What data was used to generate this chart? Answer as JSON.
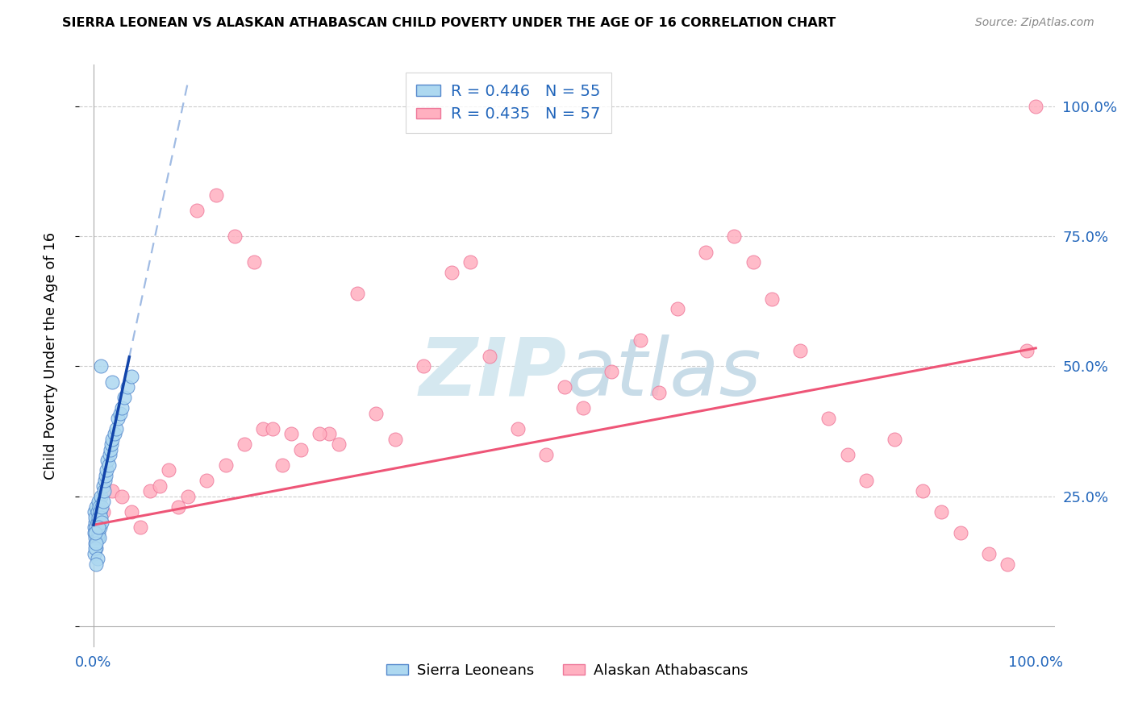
{
  "title": "SIERRA LEONEAN VS ALASKAN ATHABASCAN CHILD POVERTY UNDER THE AGE OF 16 CORRELATION CHART",
  "source": "Source: ZipAtlas.com",
  "ylabel": "Child Poverty Under the Age of 16",
  "legend_label1": "Sierra Leoneans",
  "legend_label2": "Alaskan Athabascans",
  "legend_r1": "R = 0.446",
  "legend_n1": "N = 55",
  "legend_r2": "R = 0.435",
  "legend_n2": "N = 57",
  "blue_color": "#ADD8F0",
  "blue_edge": "#5588CC",
  "pink_color": "#FFB0C0",
  "pink_edge": "#EE7799",
  "blue_line_color": "#1144AA",
  "pink_line_color": "#EE5577",
  "watermark_color": "#D5E8F0",
  "background_color": "#FFFFFF",
  "grid_color": "#CCCCCC",
  "tick_color": "#2266BB",
  "title_color": "#000000",
  "source_color": "#888888",
  "xlim": [
    -0.015,
    1.02
  ],
  "ylim": [
    -0.04,
    1.08
  ],
  "blue_scatter_x": [
    0.001,
    0.001,
    0.001,
    0.002,
    0.002,
    0.002,
    0.002,
    0.003,
    0.003,
    0.003,
    0.003,
    0.004,
    0.004,
    0.004,
    0.005,
    0.005,
    0.005,
    0.006,
    0.006,
    0.006,
    0.007,
    0.007,
    0.008,
    0.008,
    0.009,
    0.009,
    0.01,
    0.01,
    0.011,
    0.012,
    0.013,
    0.014,
    0.015,
    0.016,
    0.017,
    0.018,
    0.019,
    0.02,
    0.022,
    0.024,
    0.026,
    0.028,
    0.03,
    0.033,
    0.036,
    0.04,
    0.001,
    0.002,
    0.003,
    0.004,
    0.002,
    0.003,
    0.005,
    0.02,
    0.008
  ],
  "blue_scatter_y": [
    0.19,
    0.22,
    0.18,
    0.2,
    0.16,
    0.21,
    0.17,
    0.19,
    0.23,
    0.18,
    0.15,
    0.2,
    0.22,
    0.17,
    0.21,
    0.18,
    0.24,
    0.2,
    0.23,
    0.17,
    0.22,
    0.19,
    0.25,
    0.21,
    0.23,
    0.2,
    0.27,
    0.24,
    0.26,
    0.28,
    0.29,
    0.3,
    0.32,
    0.31,
    0.33,
    0.34,
    0.35,
    0.36,
    0.37,
    0.38,
    0.4,
    0.41,
    0.42,
    0.44,
    0.46,
    0.48,
    0.14,
    0.15,
    0.16,
    0.13,
    0.18,
    0.12,
    0.19,
    0.47,
    0.5
  ],
  "pink_scatter_x": [
    0.005,
    0.01,
    0.02,
    0.03,
    0.04,
    0.05,
    0.06,
    0.08,
    0.1,
    0.12,
    0.14,
    0.16,
    0.18,
    0.2,
    0.22,
    0.25,
    0.28,
    0.3,
    0.32,
    0.35,
    0.38,
    0.4,
    0.42,
    0.45,
    0.48,
    0.5,
    0.52,
    0.55,
    0.58,
    0.6,
    0.62,
    0.65,
    0.68,
    0.7,
    0.72,
    0.75,
    0.78,
    0.8,
    0.82,
    0.85,
    0.88,
    0.9,
    0.92,
    0.95,
    0.97,
    0.99,
    1.0,
    0.07,
    0.09,
    0.11,
    0.13,
    0.15,
    0.17,
    0.19,
    0.21,
    0.24,
    0.26
  ],
  "pink_scatter_y": [
    0.2,
    0.22,
    0.26,
    0.25,
    0.22,
    0.19,
    0.26,
    0.3,
    0.25,
    0.28,
    0.31,
    0.35,
    0.38,
    0.31,
    0.34,
    0.37,
    0.64,
    0.41,
    0.36,
    0.5,
    0.68,
    0.7,
    0.52,
    0.38,
    0.33,
    0.46,
    0.42,
    0.49,
    0.55,
    0.45,
    0.61,
    0.72,
    0.75,
    0.7,
    0.63,
    0.53,
    0.4,
    0.33,
    0.28,
    0.36,
    0.26,
    0.22,
    0.18,
    0.14,
    0.12,
    0.53,
    1.0,
    0.27,
    0.23,
    0.8,
    0.83,
    0.75,
    0.7,
    0.38,
    0.37,
    0.37,
    0.35
  ],
  "blue_line_x0": 0.0,
  "blue_line_y0": 0.195,
  "blue_line_slope": 8.5,
  "pink_line_x0": 0.0,
  "pink_line_y0": 0.195,
  "pink_line_x1": 1.0,
  "pink_line_y1": 0.535
}
